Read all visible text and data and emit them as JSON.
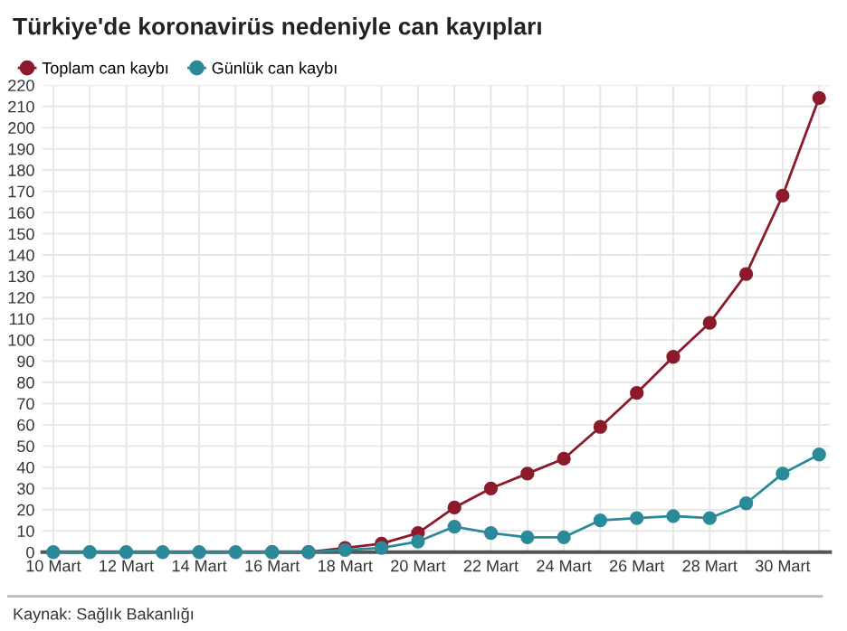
{
  "chart_data": {
    "type": "line",
    "title": "Türkiye'de koronavirüs nedeniyle can kayıpları",
    "categories": [
      "10 Mart",
      null,
      "12 Mart",
      null,
      "14 Mart",
      null,
      "16 Mart",
      null,
      "18 Mart",
      null,
      "20 Mart",
      null,
      "22 Mart",
      null,
      "24 Mart",
      null,
      "26 Mart",
      null,
      "28 Mart",
      null,
      "30 Mart",
      null
    ],
    "series": [
      {
        "name": "Toplam can kaybı",
        "color": "#8b1a2b",
        "values": [
          null,
          null,
          null,
          null,
          null,
          null,
          0,
          0,
          2,
          4,
          9,
          21,
          30,
          37,
          44,
          59,
          75,
          92,
          108,
          131,
          168,
          214
        ]
      },
      {
        "name": "Günlük can kaybı",
        "color": "#2a8a99",
        "values": [
          0,
          0,
          0,
          0,
          0,
          0,
          0,
          0,
          1,
          2,
          5,
          12,
          9,
          7,
          7,
          15,
          16,
          17,
          16,
          23,
          37,
          46
        ]
      }
    ],
    "ylim": [
      0,
      220
    ],
    "yticks": [
      0,
      10,
      20,
      30,
      40,
      50,
      60,
      70,
      80,
      90,
      100,
      110,
      120,
      130,
      140,
      150,
      160,
      170,
      180,
      190,
      200,
      210,
      220
    ],
    "grid": true,
    "legend": "top left",
    "marker": "circle",
    "line_style": "solid",
    "annotations": [
      "Kaynak: Sağlık Bakanlığı"
    ]
  }
}
